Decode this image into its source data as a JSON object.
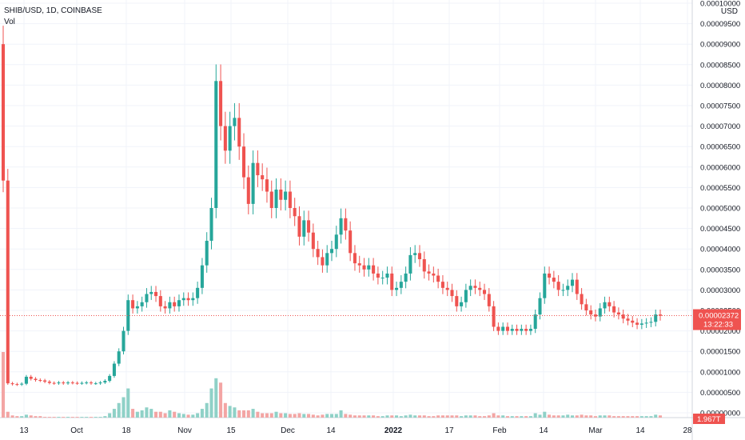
{
  "header": {
    "symbol_line": "SHIB/USD, 1D, COINBASE",
    "volume_label": "Vol"
  },
  "colors": {
    "up": "#26a69a",
    "down": "#ef5350",
    "up_volume": "#8fd1c7",
    "down_volume": "#f3a5a4",
    "grid": "#f0f3fa",
    "text": "#131722"
  },
  "chart_data": {
    "type": "candlestick",
    "title": "SHIB/USD, 1D, COINBASE",
    "subtitle": "Vol",
    "ylabel": "USD",
    "ylim": [
      0.0,
      0.0001
    ],
    "grid": true,
    "y_ticks": [
      "0.00010000",
      "0.00009500",
      "0.00009000",
      "0.00008500",
      "0.00008000",
      "0.00007500",
      "0.00007000",
      "0.00006500",
      "0.00006000",
      "0.00005500",
      "0.00005000",
      "0.00004500",
      "0.00004000",
      "0.00003500",
      "0.00003000",
      "0.00002500",
      "0.00002000",
      "0.00001500",
      "0.00001000",
      "0.00000500",
      "0.00000000"
    ],
    "x_ticks": [
      "13",
      "Oct",
      "18",
      "Nov",
      "15",
      "Dec",
      "14",
      "2022",
      "17",
      "Feb",
      "14",
      "Mar",
      "14",
      "28"
    ],
    "last_price": "0.00002372",
    "countdown": "13:22:33",
    "last_volume": "1.967T",
    "close": [
      5.67e-05,
      7.2e-06,
      7e-06,
      6.9e-06,
      7.1e-06,
      8.8e-06,
      8.3e-06,
      8e-06,
      7.9e-06,
      7.6e-06,
      7.3e-06,
      7.2e-06,
      7.4e-06,
      7.2e-06,
      7.4e-06,
      7.3e-06,
      7.2e-06,
      7.3e-06,
      7.4e-06,
      7.2e-06,
      7.2e-06,
      7.4e-06,
      7.8e-06,
      9e-06,
      1.2e-05,
      1.5e-05,
      2e-05,
      2.75e-05,
      2.55e-05,
      2.6e-05,
      2.7e-05,
      2.9e-05,
      2.95e-05,
      2.85e-05,
      2.6e-05,
      2.55e-05,
      2.7e-05,
      2.6e-05,
      2.75e-05,
      2.8e-05,
      2.75e-05,
      2.8e-05,
      3.05e-05,
      3.6e-05,
      4.2e-05,
      5e-05,
      8.1e-05,
      7e-05,
      6.4e-05,
      7e-05,
      7.2e-05,
      6.5e-05,
      5.75e-05,
      5.1e-05,
      6.1e-05,
      5.8e-05,
      5.7e-05,
      5.4e-05,
      5e-05,
      5.45e-05,
      5.2e-05,
      5.4e-05,
      5e-05,
      4.8e-05,
      4.3e-05,
      4.7e-05,
      4.4e-05,
      4e-05,
      3.8e-05,
      3.6e-05,
      3.9e-05,
      4e-05,
      4.35e-05,
      4.75e-05,
      4.45e-05,
      3.9e-05,
      3.65e-05,
      3.6e-05,
      3.5e-05,
      3.6e-05,
      3.4e-05,
      3.3e-05,
      3.3e-05,
      3.4e-05,
      3e-05,
      3.05e-05,
      3.2e-05,
      3.4e-05,
      3.85e-05,
      3.9e-05,
      3.75e-05,
      3.45e-05,
      3.4e-05,
      3.35e-05,
      3.2e-05,
      3.05e-05,
      3e-05,
      2.85e-05,
      2.6e-05,
      2.7e-05,
      3e-05,
      3.1e-05,
      3.05e-05,
      3e-05,
      2.9e-05,
      2.6e-05,
      2.1e-05,
      2e-05,
      2.1e-05,
      2e-05,
      2.05e-05,
      2e-05,
      2.05e-05,
      2e-05,
      2.05e-05,
      2.4e-05,
      2.8e-05,
      3.4e-05,
      3.3e-05,
      3.2e-05,
      3e-05,
      3e-05,
      3.1e-05,
      3.25e-05,
      2.9e-05,
      2.65e-05,
      2.5e-05,
      2.4e-05,
      2.35e-05,
      2.55e-05,
      2.7e-05,
      2.6e-05,
      2.45e-05,
      2.4e-05,
      2.3e-05,
      2.25e-05,
      2.2e-05,
      2.15e-05,
      2.18e-05,
      2.2e-05,
      2.22e-05,
      2.4e-05,
      2.37e-05
    ],
    "volume_scale_note": "relative",
    "volume": [
      90,
      8,
      3,
      2,
      2,
      4,
      3,
      2,
      2,
      1,
      1,
      1,
      1,
      1,
      1,
      1,
      1,
      1,
      1,
      1,
      1,
      1,
      2,
      6,
      12,
      20,
      28,
      40,
      12,
      8,
      10,
      14,
      12,
      8,
      8,
      6,
      10,
      8,
      6,
      5,
      4,
      4,
      6,
      12,
      20,
      40,
      54,
      48,
      20,
      16,
      14,
      10,
      10,
      10,
      12,
      8,
      6,
      6,
      6,
      8,
      6,
      6,
      5,
      5,
      6,
      5,
      5,
      4,
      3,
      4,
      5,
      5,
      5,
      10,
      5,
      4,
      3,
      3,
      3,
      3,
      3,
      2,
      2,
      3,
      3,
      3,
      2,
      3,
      4,
      3,
      3,
      3,
      2,
      2,
      3,
      3,
      3,
      3,
      3,
      2,
      3,
      3,
      3,
      2,
      2,
      3,
      6,
      3,
      3,
      2,
      2,
      2,
      2,
      2,
      2,
      6,
      4,
      8,
      4,
      3,
      3,
      3,
      4,
      3,
      3,
      4,
      3,
      3,
      2,
      3,
      3,
      3,
      2,
      2,
      2,
      2,
      2,
      2,
      2,
      2,
      2,
      4,
      3
    ]
  }
}
